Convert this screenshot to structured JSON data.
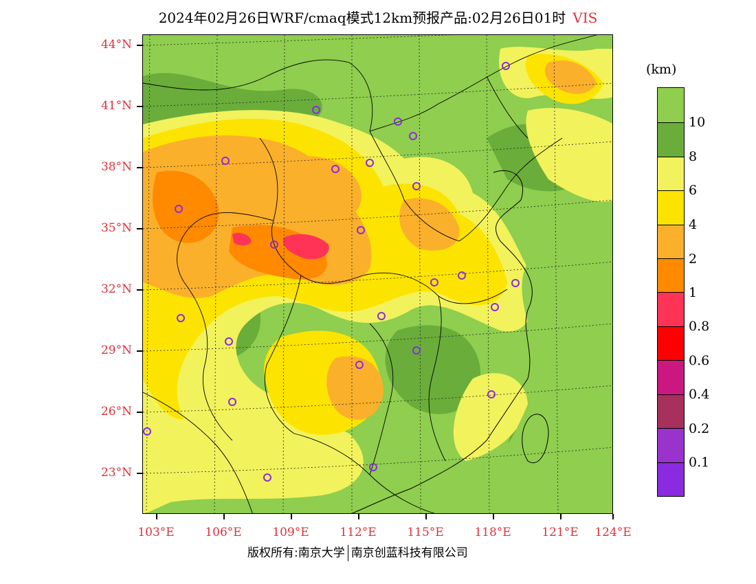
{
  "title": {
    "main": "2024年02月26日WRF/cmaq模式12km预报产品:02月26日01时",
    "variable": "VIS"
  },
  "axes": {
    "lat_labels": [
      "44°N",
      "41°N",
      "38°N",
      "35°N",
      "32°N",
      "29°N",
      "26°N",
      "23°N"
    ],
    "lon_labels": [
      "103°E",
      "106°E",
      "109°E",
      "112°E",
      "115°E",
      "118°E",
      "121°E",
      "124°E"
    ]
  },
  "colorbar": {
    "unit": "(km)",
    "labels": [
      "10",
      "8",
      "6",
      "4",
      "2",
      "1",
      "0.8",
      "0.6",
      "0.4",
      "0.2",
      "0.1"
    ],
    "colors": [
      "#8fce4e",
      "#6aad3a",
      "#f2f25c",
      "#fde400",
      "#fbb02b",
      "#ff8a00",
      "#ff3355",
      "#ff0000",
      "#cc1780",
      "#a8305c",
      "#9933cc",
      "#8a2be2"
    ]
  },
  "footer": {
    "left": "版权所有:南京大学",
    "right": "南京创蓝科技有限公司"
  }
}
